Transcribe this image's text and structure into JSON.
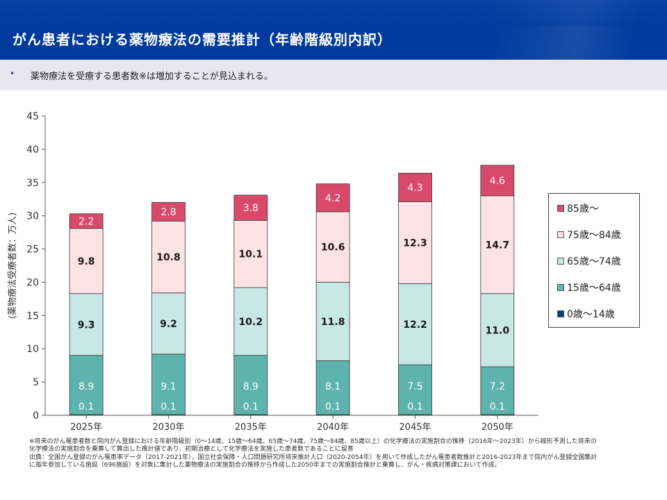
{
  "header": {
    "title": "がん患者における薬物療法の需要推計（年齢階級別内訳）"
  },
  "summary": {
    "bullet": "•",
    "text": "薬物療法を受療する患者数※は増加することが見込まれる。"
  },
  "chart_data": {
    "type": "bar",
    "stacked": true,
    "categories": [
      "2025年",
      "2030年",
      "2035年",
      "2040年",
      "2045年",
      "2050年"
    ],
    "ylabel": "(薬物療法受療者数：万人)",
    "ylim": [
      0,
      45
    ],
    "yticks": [
      "0",
      "5",
      "10",
      "15",
      "20",
      "25",
      "30",
      "35",
      "40",
      "45"
    ],
    "grid": false,
    "legend_position": "right",
    "series": [
      {
        "name": "0歳～14歳",
        "color": "#0d3e7a",
        "values": [
          0.1,
          0.1,
          0.1,
          0.1,
          0.1,
          0.1
        ],
        "labels": [
          "0.1",
          "0.1",
          "0.1",
          "0.1",
          "0.1",
          "0.1"
        ],
        "label_color": "#ffffff"
      },
      {
        "name": "15歳～64歳",
        "color": "#5fb3ad",
        "values": [
          8.9,
          9.1,
          8.9,
          8.1,
          7.5,
          7.2
        ],
        "labels": [
          "8.9",
          "9.1",
          "8.9",
          "8.1",
          "7.5",
          "7.2"
        ],
        "label_color": "#ffffff"
      },
      {
        "name": "65歳～74歳",
        "color": "#c8e8e6",
        "values": [
          9.3,
          9.2,
          10.2,
          11.8,
          12.2,
          11.0
        ],
        "labels": [
          "9.3",
          "9.2",
          "10.2",
          "11.8",
          "12.2",
          "11.0"
        ],
        "label_color": "#1a1a1a"
      },
      {
        "name": "75歳～84歳",
        "color": "#fde2e6",
        "values": [
          9.8,
          10.8,
          10.1,
          10.6,
          12.3,
          14.7
        ],
        "labels": [
          "9.8",
          "10.8",
          "10.1",
          "10.6",
          "12.3",
          "14.7"
        ],
        "label_color": "#1a1a1a"
      },
      {
        "name": "85歳～",
        "color": "#d9496a",
        "values": [
          2.2,
          2.8,
          3.8,
          4.2,
          4.3,
          4.6
        ],
        "labels": [
          "2.2",
          "2.8",
          "3.8",
          "4.2",
          "4.3",
          "4.6"
        ],
        "label_color": "#ffffff"
      }
    ],
    "legend_order": [
      "85歳～",
      "75歳～84歳",
      "65歳～74歳",
      "15歳～64歳",
      "0歳～14歳"
    ]
  },
  "footnotes": [
    "※将来のがん罹患者数と院内がん登録における年齢階級別（0～14歳、15歳～64歳、65歳～74歳、75歳～84歳、85歳以上）の化学療法の実施割合の推移（2016年～2023年）から線形予測した将来の",
    "化学療法の実施割合を乗算して算出した推計値であり、初期治療として化学療法を実施した患者数であることに留意",
    "出典：全国がん登録のがん罹患率データ（2017-2021年）、国立社会保障・人口問題研究所将来推計人口（2020-2054年）を用いて作成したがん罹患者数推計と2016-2023年まで院内がん登録全国集計",
    "に毎年参加している施設（696施設）を対象に集計した薬物療法の実施割合の推移から作成した2050年までの実施割合推計と乗算し、がん・疾病対策課において作成。"
  ]
}
